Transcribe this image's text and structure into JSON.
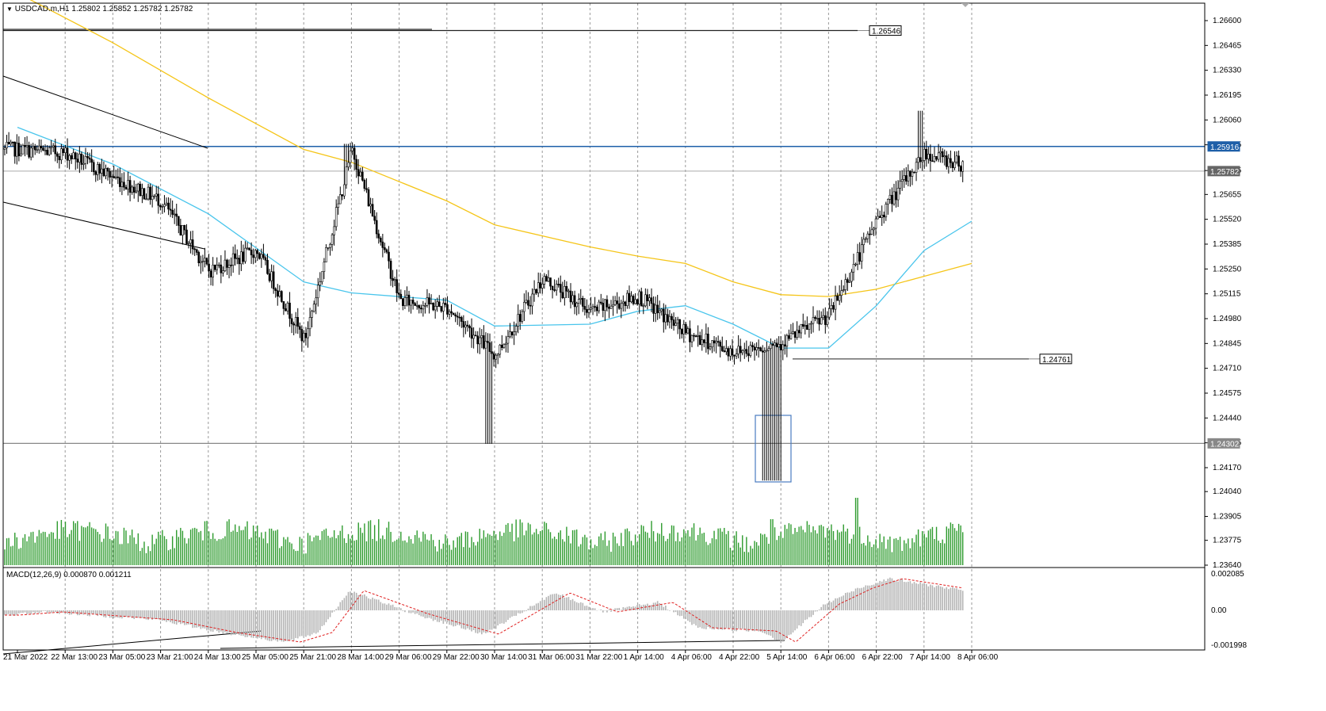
{
  "header": {
    "symbol": "USDCAD.m,H1",
    "ohlc": "1.25802 1.25852 1.25782 1.25782",
    "dropdown_icon": "triangle-down-icon"
  },
  "macd_header": {
    "label": "MACD(12,26,9) 0.000870 0.001211"
  },
  "colors": {
    "bull_volume": "#2e9b2e",
    "ma_fast": "#49c5ec",
    "ma_slow": "#f5c518",
    "resistance_line": "#1e5fa8",
    "grid": "#9a9a9a",
    "candle": "#000000",
    "macd_hist": "#b4b4b4",
    "macd_signal": "#e02020",
    "box": "#4a7cc0"
  },
  "chart_data": {
    "type": "candlestick",
    "symbol": "USDCAD.m",
    "timeframe": "H1",
    "last_ohlc": {
      "open": 1.25802,
      "high": 1.25852,
      "low": 1.25782,
      "close": 1.25782
    },
    "price_axis_ticks": [
      "1.26600",
      "1.26465",
      "1.26330",
      "1.26195",
      "1.26060",
      "1.25925",
      "1.25785",
      "1.25655",
      "1.25520",
      "1.25385",
      "1.25250",
      "1.25115",
      "1.24980",
      "1.24845",
      "1.24710",
      "1.24575",
      "1.24440",
      "1.24305",
      "1.24170",
      "1.24040",
      "1.23905",
      "1.23775",
      "1.23640"
    ],
    "time_axis_labels": [
      "21 Mar 2022",
      "22 Mar 13:00",
      "23 Mar 05:00",
      "23 Mar 21:00",
      "24 Mar 13:00",
      "25 Mar 05:00",
      "25 Mar 21:00",
      "28 Mar 14:00",
      "29 Mar 06:00",
      "29 Mar 22:00",
      "30 Mar 14:00",
      "31 Mar 06:00",
      "31 Mar 22:00",
      "1 Apr 14:00",
      "4 Apr 06:00",
      "4 Apr 22:00",
      "5 Apr 14:00",
      "6 Apr 06:00",
      "6 Apr 22:00",
      "7 Apr 14:00",
      "8 Apr 06:00"
    ],
    "horizontal_levels": [
      {
        "label": "1.26546",
        "value": 1.26546
      },
      {
        "label": "1.25916",
        "value": 1.25916
      },
      {
        "label": "1.25782",
        "value": 1.25782
      },
      {
        "label": "1.24761",
        "value": 1.24761
      },
      {
        "label": "1.24302",
        "value": 1.24302
      }
    ],
    "close_path_by_time_label": [
      {
        "time": "21 Mar 2022",
        "price": 1.259
      },
      {
        "time": "22 Mar 13:00",
        "price": 1.2588
      },
      {
        "time": "23 Mar 05:00",
        "price": 1.2575
      },
      {
        "time": "23 Mar 21:00",
        "price": 1.2562
      },
      {
        "time": "24 Mar 13:00",
        "price": 1.2524
      },
      {
        "time": "25 Mar 05:00",
        "price": 1.2535
      },
      {
        "time": "25 Mar 21:00",
        "price": 1.2486
      },
      {
        "time": "28 Mar 14:00",
        "price": 1.259
      },
      {
        "time": "29 Mar 06:00",
        "price": 1.2508
      },
      {
        "time": "29 Mar 22:00",
        "price": 1.2504
      },
      {
        "time": "30 Mar 14:00",
        "price": 1.2478
      },
      {
        "time": "31 Mar 06:00",
        "price": 1.252
      },
      {
        "time": "31 Mar 22:00",
        "price": 1.2502
      },
      {
        "time": "1 Apr 14:00",
        "price": 1.251
      },
      {
        "time": "4 Apr 06:00",
        "price": 1.249
      },
      {
        "time": "4 Apr 22:00",
        "price": 1.248
      },
      {
        "time": "5 Apr 14:00",
        "price": 1.2485
      },
      {
        "time": "6 Apr 06:00",
        "price": 1.25
      },
      {
        "time": "6 Apr 22:00",
        "price": 1.2552
      },
      {
        "time": "7 Apr 14:00",
        "price": 1.2588
      },
      {
        "time": "8 Apr 06:00",
        "price": 1.258
      }
    ],
    "ma_fast_path": [
      {
        "time": "21 Mar 2022",
        "price": 1.2602
      },
      {
        "time": "23 Mar 05:00",
        "price": 1.2582
      },
      {
        "time": "24 Mar 13:00",
        "price": 1.2555
      },
      {
        "time": "25 Mar 21:00",
        "price": 1.2518
      },
      {
        "time": "28 Mar 14:00",
        "price": 1.2512
      },
      {
        "time": "29 Mar 22:00",
        "price": 1.2508
      },
      {
        "time": "30 Mar 14:00",
        "price": 1.2494
      },
      {
        "time": "31 Mar 22:00",
        "price": 1.2495
      },
      {
        "time": "1 Apr 14:00",
        "price": 1.2502
      },
      {
        "time": "4 Apr 06:00",
        "price": 1.2505
      },
      {
        "time": "4 Apr 22:00",
        "price": 1.2495
      },
      {
        "time": "5 Apr 14:00",
        "price": 1.2482
      },
      {
        "time": "6 Apr 06:00",
        "price": 1.2482
      },
      {
        "time": "6 Apr 22:00",
        "price": 1.2505
      },
      {
        "time": "7 Apr 14:00",
        "price": 1.2535
      },
      {
        "time": "8 Apr 06:00",
        "price": 1.2551
      }
    ],
    "ma_slow_path": [
      {
        "time": "21 Mar 2022",
        "price": 1.2675
      },
      {
        "time": "23 Mar 05:00",
        "price": 1.2648
      },
      {
        "time": "24 Mar 13:00",
        "price": 1.2618
      },
      {
        "time": "25 Mar 21:00",
        "price": 1.259
      },
      {
        "time": "28 Mar 14:00",
        "price": 1.2583
      },
      {
        "time": "29 Mar 22:00",
        "price": 1.2562
      },
      {
        "time": "30 Mar 14:00",
        "price": 1.2549
      },
      {
        "time": "31 Mar 22:00",
        "price": 1.2537
      },
      {
        "time": "1 Apr 14:00",
        "price": 1.2532
      },
      {
        "time": "4 Apr 06:00",
        "price": 1.2528
      },
      {
        "time": "4 Apr 22:00",
        "price": 1.2518
      },
      {
        "time": "5 Apr 14:00",
        "price": 1.2511
      },
      {
        "time": "6 Apr 06:00",
        "price": 1.251
      },
      {
        "time": "6 Apr 22:00",
        "price": 1.2514
      },
      {
        "time": "7 Apr 14:00",
        "price": 1.2521
      },
      {
        "time": "8 Apr 06:00",
        "price": 1.2528
      }
    ],
    "macd_axis_labels": [
      "0.002085",
      "0.00",
      "-0.001998"
    ]
  }
}
